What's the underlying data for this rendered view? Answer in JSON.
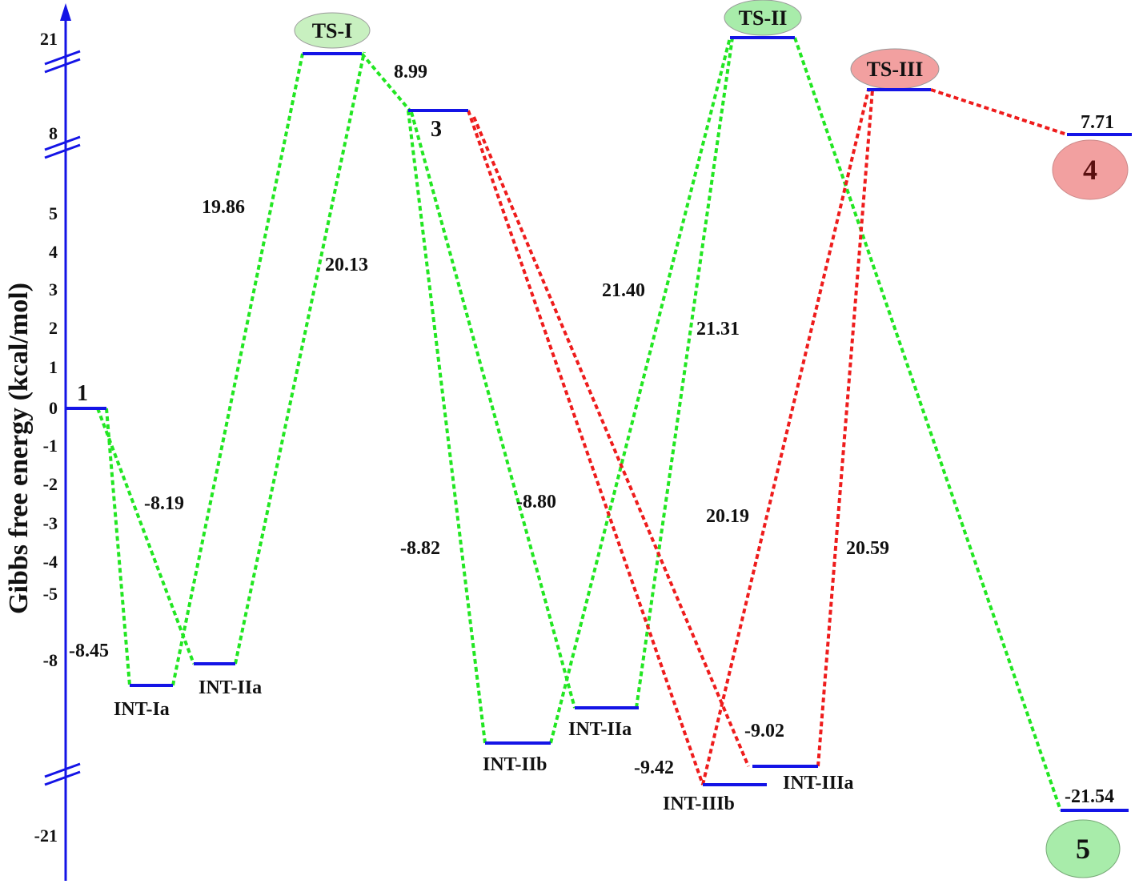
{
  "axis": {
    "label": "Gibbs free energy (kcal/mol)",
    "ticks": [
      "21",
      "8",
      "5",
      "4",
      "3",
      "2",
      "1",
      "0",
      "-1",
      "-2",
      "-3",
      "-4",
      "-5",
      "-8",
      "-21"
    ]
  },
  "states": [
    "1",
    "INT-Ia",
    "INT-IIa",
    "TS-I",
    "3",
    "INT-IIb",
    "INT-IIa",
    "TS-II",
    "INT-IIIb",
    "INT-IIIa",
    "TS-III",
    "4",
    "5"
  ],
  "level_values": [
    "7.71",
    "-21.54"
  ],
  "barriers": [
    "-8.45",
    "-8.19",
    "19.86",
    "20.13",
    "8.99",
    "-8.82",
    "-8.80",
    "21.40",
    "21.31",
    "20.19",
    "20.59",
    "-9.42",
    "-9.02"
  ]
}
